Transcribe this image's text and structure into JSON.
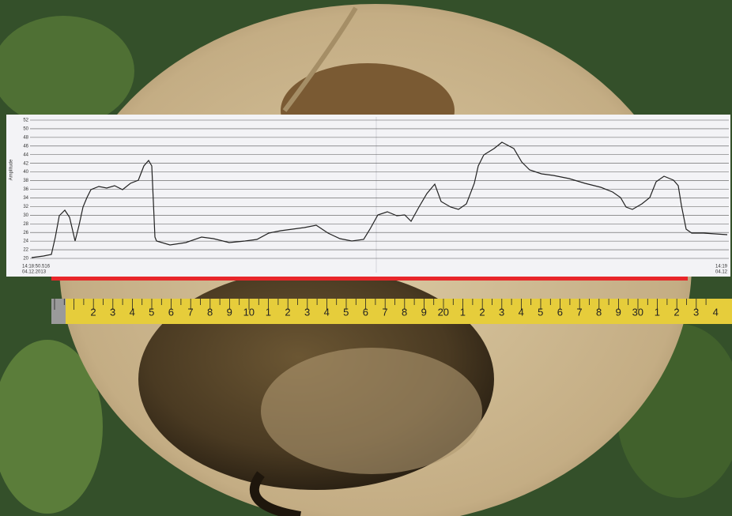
{
  "printout": {
    "axis_label": "Amplitude",
    "yticks": [
      52,
      50,
      48,
      46,
      44,
      42,
      40,
      38,
      36,
      34,
      32,
      30,
      28,
      26,
      24,
      22,
      20
    ],
    "start_time": "14:18:50.516",
    "start_date": "04.12.2013",
    "end_time": "14:19",
    "end_date": "04.12"
  },
  "tape": {
    "labels": [
      "2",
      "3",
      "4",
      "5",
      "6",
      "7",
      "8",
      "9",
      "10",
      "1",
      "2",
      "3",
      "4",
      "5",
      "6",
      "7",
      "8",
      "9",
      "20",
      "1",
      "2",
      "3",
      "4",
      "5",
      "6",
      "7",
      "8",
      "9",
      "30",
      "1",
      "2",
      "3",
      "4"
    ],
    "accent_labels": [
      "10",
      "20",
      "30"
    ]
  }
}
